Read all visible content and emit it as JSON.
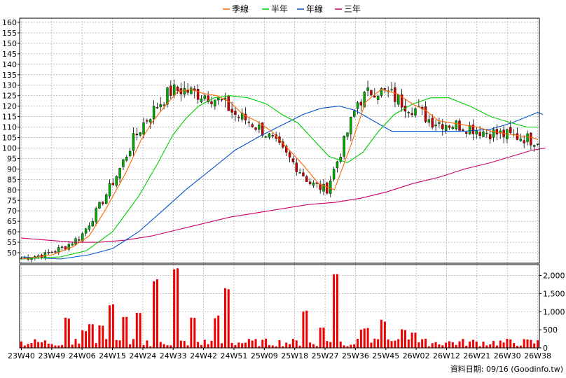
{
  "chart_data": {
    "type": "candlestick",
    "colors": {
      "up": "#00aa00",
      "down": "#cc0000",
      "ma_quarter": "#ff6600",
      "ma_half": "#00cc00",
      "ma_year": "#0055cc",
      "ma_three_year": "#cc0066",
      "volume": "#ee0000",
      "grid": "#999999",
      "frame": "#000000"
    },
    "legend": [
      {
        "key": "ma_quarter",
        "label": "季線"
      },
      {
        "key": "ma_half",
        "label": "半年"
      },
      {
        "key": "ma_year",
        "label": "年線"
      },
      {
        "key": "ma_three_year",
        "label": "三年"
      }
    ],
    "price_axis": {
      "ylim": [
        45,
        162
      ],
      "ticks": [
        50,
        55,
        60,
        65,
        70,
        75,
        80,
        85,
        90,
        95,
        100,
        105,
        110,
        115,
        120,
        125,
        130,
        135,
        140,
        145,
        150,
        155,
        160
      ]
    },
    "volume_axis": {
      "ylim": [
        0,
        2300
      ],
      "ticks": [
        0,
        500,
        1000,
        1500,
        2000
      ],
      "tick_labels": [
        "0",
        "500",
        "1,000",
        "1,500",
        "2,000"
      ]
    },
    "x_axis": {
      "n_bars": 153,
      "tick_labels": [
        "23W40",
        "23W49",
        "24W06",
        "24W15",
        "24W24",
        "24W33",
        "24W42",
        "24W51",
        "25W09",
        "25W18",
        "25W27",
        "25W36",
        "25W45",
        "26W02",
        "26W12",
        "26W21",
        "26W30",
        "26W38"
      ]
    },
    "ma_quarter": [
      [
        0,
        47
      ],
      [
        12,
        49
      ],
      [
        20,
        53
      ],
      [
        26,
        58
      ],
      [
        32,
        70
      ],
      [
        40,
        88
      ],
      [
        46,
        104
      ],
      [
        50,
        112
      ],
      [
        55,
        120
      ],
      [
        60,
        127
      ],
      [
        65,
        128
      ],
      [
        70,
        126
      ],
      [
        75,
        125
      ],
      [
        80,
        122
      ],
      [
        85,
        116
      ],
      [
        90,
        113
      ],
      [
        96,
        108
      ],
      [
        102,
        100
      ],
      [
        108,
        92
      ],
      [
        114,
        83
      ],
      [
        120,
        80
      ],
      [
        126,
        100
      ],
      [
        132,
        122
      ],
      [
        138,
        128
      ],
      [
        144,
        126
      ],
      [
        150,
        121
      ],
      [
        155,
        118
      ],
      [
        160,
        113
      ],
      [
        165,
        112
      ],
      [
        170,
        111
      ],
      [
        175,
        110
      ],
      [
        180,
        108
      ],
      [
        185,
        107
      ],
      [
        190,
        106
      ],
      [
        196,
        105
      ],
      [
        198,
        104
      ]
    ],
    "ma_half": [
      [
        0,
        47
      ],
      [
        15,
        48
      ],
      [
        25,
        51
      ],
      [
        35,
        60
      ],
      [
        45,
        77
      ],
      [
        52,
        92
      ],
      [
        58,
        106
      ],
      [
        63,
        114
      ],
      [
        68,
        120
      ],
      [
        74,
        124
      ],
      [
        80,
        125
      ],
      [
        87,
        124
      ],
      [
        94,
        121
      ],
      [
        100,
        116
      ],
      [
        106,
        112
      ],
      [
        112,
        104
      ],
      [
        118,
        96
      ],
      [
        125,
        93
      ],
      [
        131,
        98
      ],
      [
        137,
        108
      ],
      [
        143,
        116
      ],
      [
        150,
        121
      ],
      [
        157,
        124
      ],
      [
        164,
        124
      ],
      [
        172,
        120
      ],
      [
        180,
        115
      ],
      [
        188,
        112
      ],
      [
        194,
        110
      ],
      [
        198,
        110
      ]
    ],
    "ma_year": [
      [
        0,
        48
      ],
      [
        15,
        47
      ],
      [
        26,
        49
      ],
      [
        35,
        52
      ],
      [
        45,
        60
      ],
      [
        55,
        71
      ],
      [
        63,
        80
      ],
      [
        72,
        89
      ],
      [
        82,
        99
      ],
      [
        92,
        106
      ],
      [
        100,
        111
      ],
      [
        108,
        116
      ],
      [
        115,
        119
      ],
      [
        122,
        120
      ],
      [
        128,
        118
      ],
      [
        135,
        113
      ],
      [
        142,
        108
      ],
      [
        150,
        108
      ],
      [
        160,
        108
      ],
      [
        170,
        108
      ],
      [
        180,
        109
      ],
      [
        188,
        112
      ],
      [
        194,
        115
      ],
      [
        198,
        117
      ],
      [
        200,
        116
      ]
    ],
    "ma_three_year": [
      [
        0,
        57
      ],
      [
        10,
        56
      ],
      [
        20,
        55
      ],
      [
        30,
        55
      ],
      [
        40,
        56
      ],
      [
        50,
        58
      ],
      [
        60,
        61
      ],
      [
        70,
        64
      ],
      [
        80,
        67
      ],
      [
        90,
        69
      ],
      [
        100,
        71
      ],
      [
        110,
        73
      ],
      [
        120,
        74
      ],
      [
        130,
        76
      ],
      [
        140,
        79
      ],
      [
        150,
        83
      ],
      [
        160,
        86
      ],
      [
        170,
        90
      ],
      [
        180,
        93
      ],
      [
        188,
        96
      ],
      [
        196,
        99
      ],
      [
        201,
        100
      ]
    ]
  }
}
